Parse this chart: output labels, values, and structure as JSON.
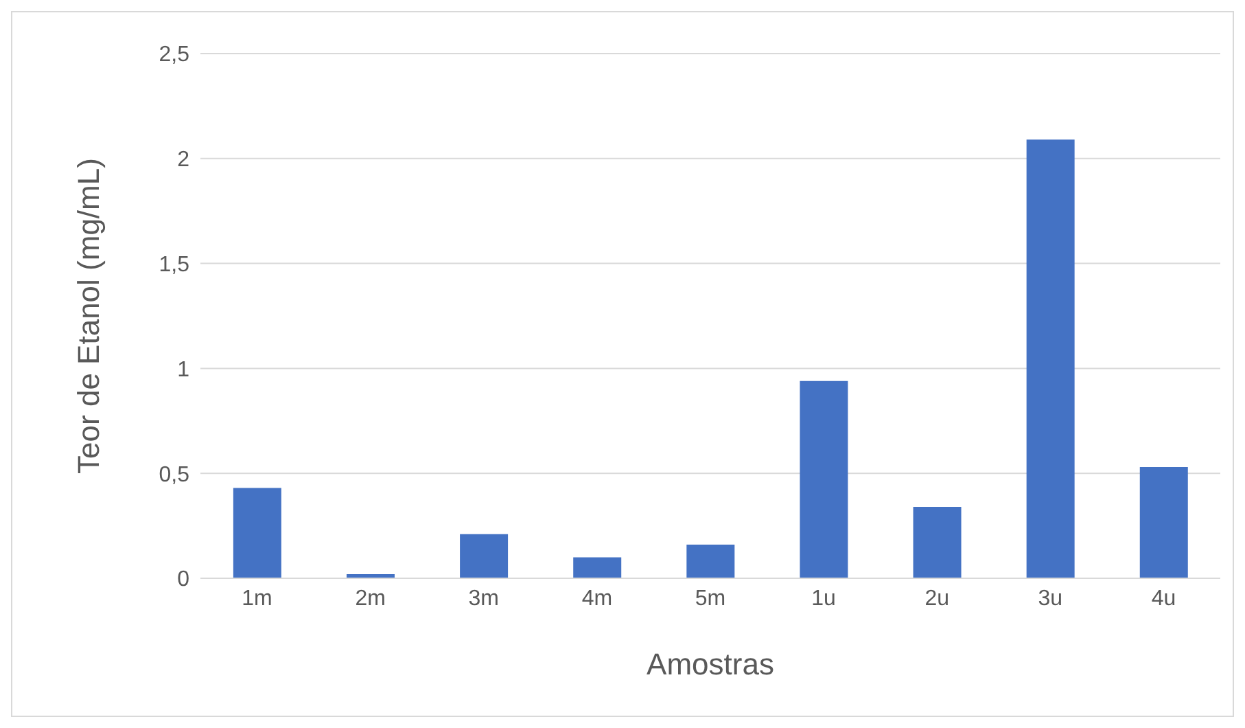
{
  "chart_data": {
    "type": "bar",
    "xlabel": "Amostras",
    "ylabel": "Teor de Etanol (mg/mL)",
    "categories": [
      "1m",
      "2m",
      "3m",
      "4m",
      "5m",
      "1u",
      "2u",
      "3u",
      "4u"
    ],
    "values": [
      0.43,
      0.02,
      0.21,
      0.1,
      0.16,
      0.94,
      0.34,
      2.09,
      0.53
    ],
    "color": "#4472c4",
    "ylim": [
      0,
      2.5
    ],
    "yticks": [
      0,
      {
        "value": 0.5,
        "label": "0,5"
      },
      1,
      {
        "value": 1.5,
        "label": "1,5"
      },
      2,
      {
        "value": 2.5,
        "label": "2,5"
      }
    ],
    "grid": "y"
  }
}
